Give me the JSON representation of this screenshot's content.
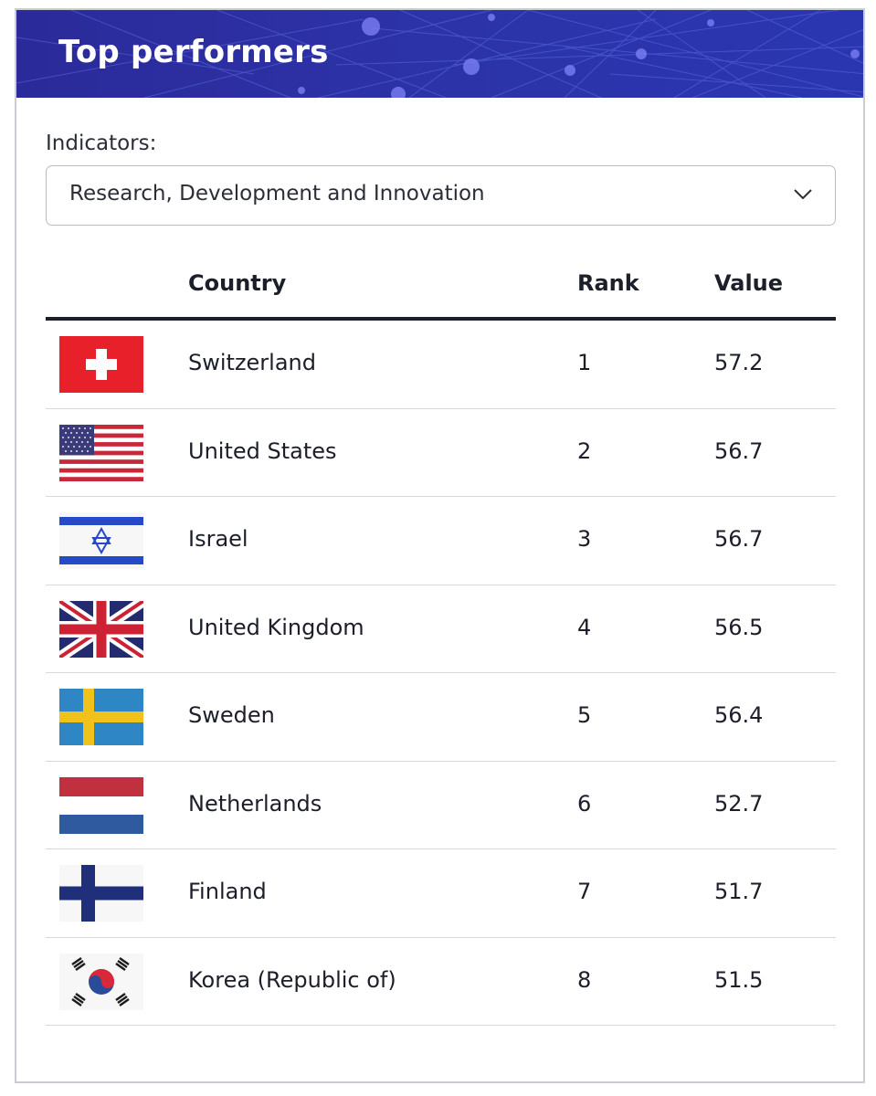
{
  "panel": {
    "title": "Top performers"
  },
  "filter": {
    "label": "Indicators:",
    "selected": "Research, Development and Innovation"
  },
  "table": {
    "headers": {
      "country": "Country",
      "rank": "Rank",
      "value": "Value"
    },
    "rows": [
      {
        "flag": "flag-switzerland-icon",
        "country": "Switzerland",
        "rank": "1",
        "value": "57.2"
      },
      {
        "flag": "flag-united-states-icon",
        "country": "United States",
        "rank": "2",
        "value": "56.7"
      },
      {
        "flag": "flag-israel-icon",
        "country": "Israel",
        "rank": "3",
        "value": "56.7"
      },
      {
        "flag": "flag-united-kingdom-icon",
        "country": "United Kingdom",
        "rank": "4",
        "value": "56.5"
      },
      {
        "flag": "flag-sweden-icon",
        "country": "Sweden",
        "rank": "5",
        "value": "56.4"
      },
      {
        "flag": "flag-netherlands-icon",
        "country": "Netherlands",
        "rank": "6",
        "value": "52.7"
      },
      {
        "flag": "flag-finland-icon",
        "country": "Finland",
        "rank": "7",
        "value": "51.7"
      },
      {
        "flag": "flag-korea-icon",
        "country": "Korea (Republic of)",
        "rank": "8",
        "value": "51.5"
      }
    ]
  },
  "colors": {
    "banner": "#2a2f9e",
    "text": "#1c1f2a",
    "row_divider": "#d7d9de"
  }
}
